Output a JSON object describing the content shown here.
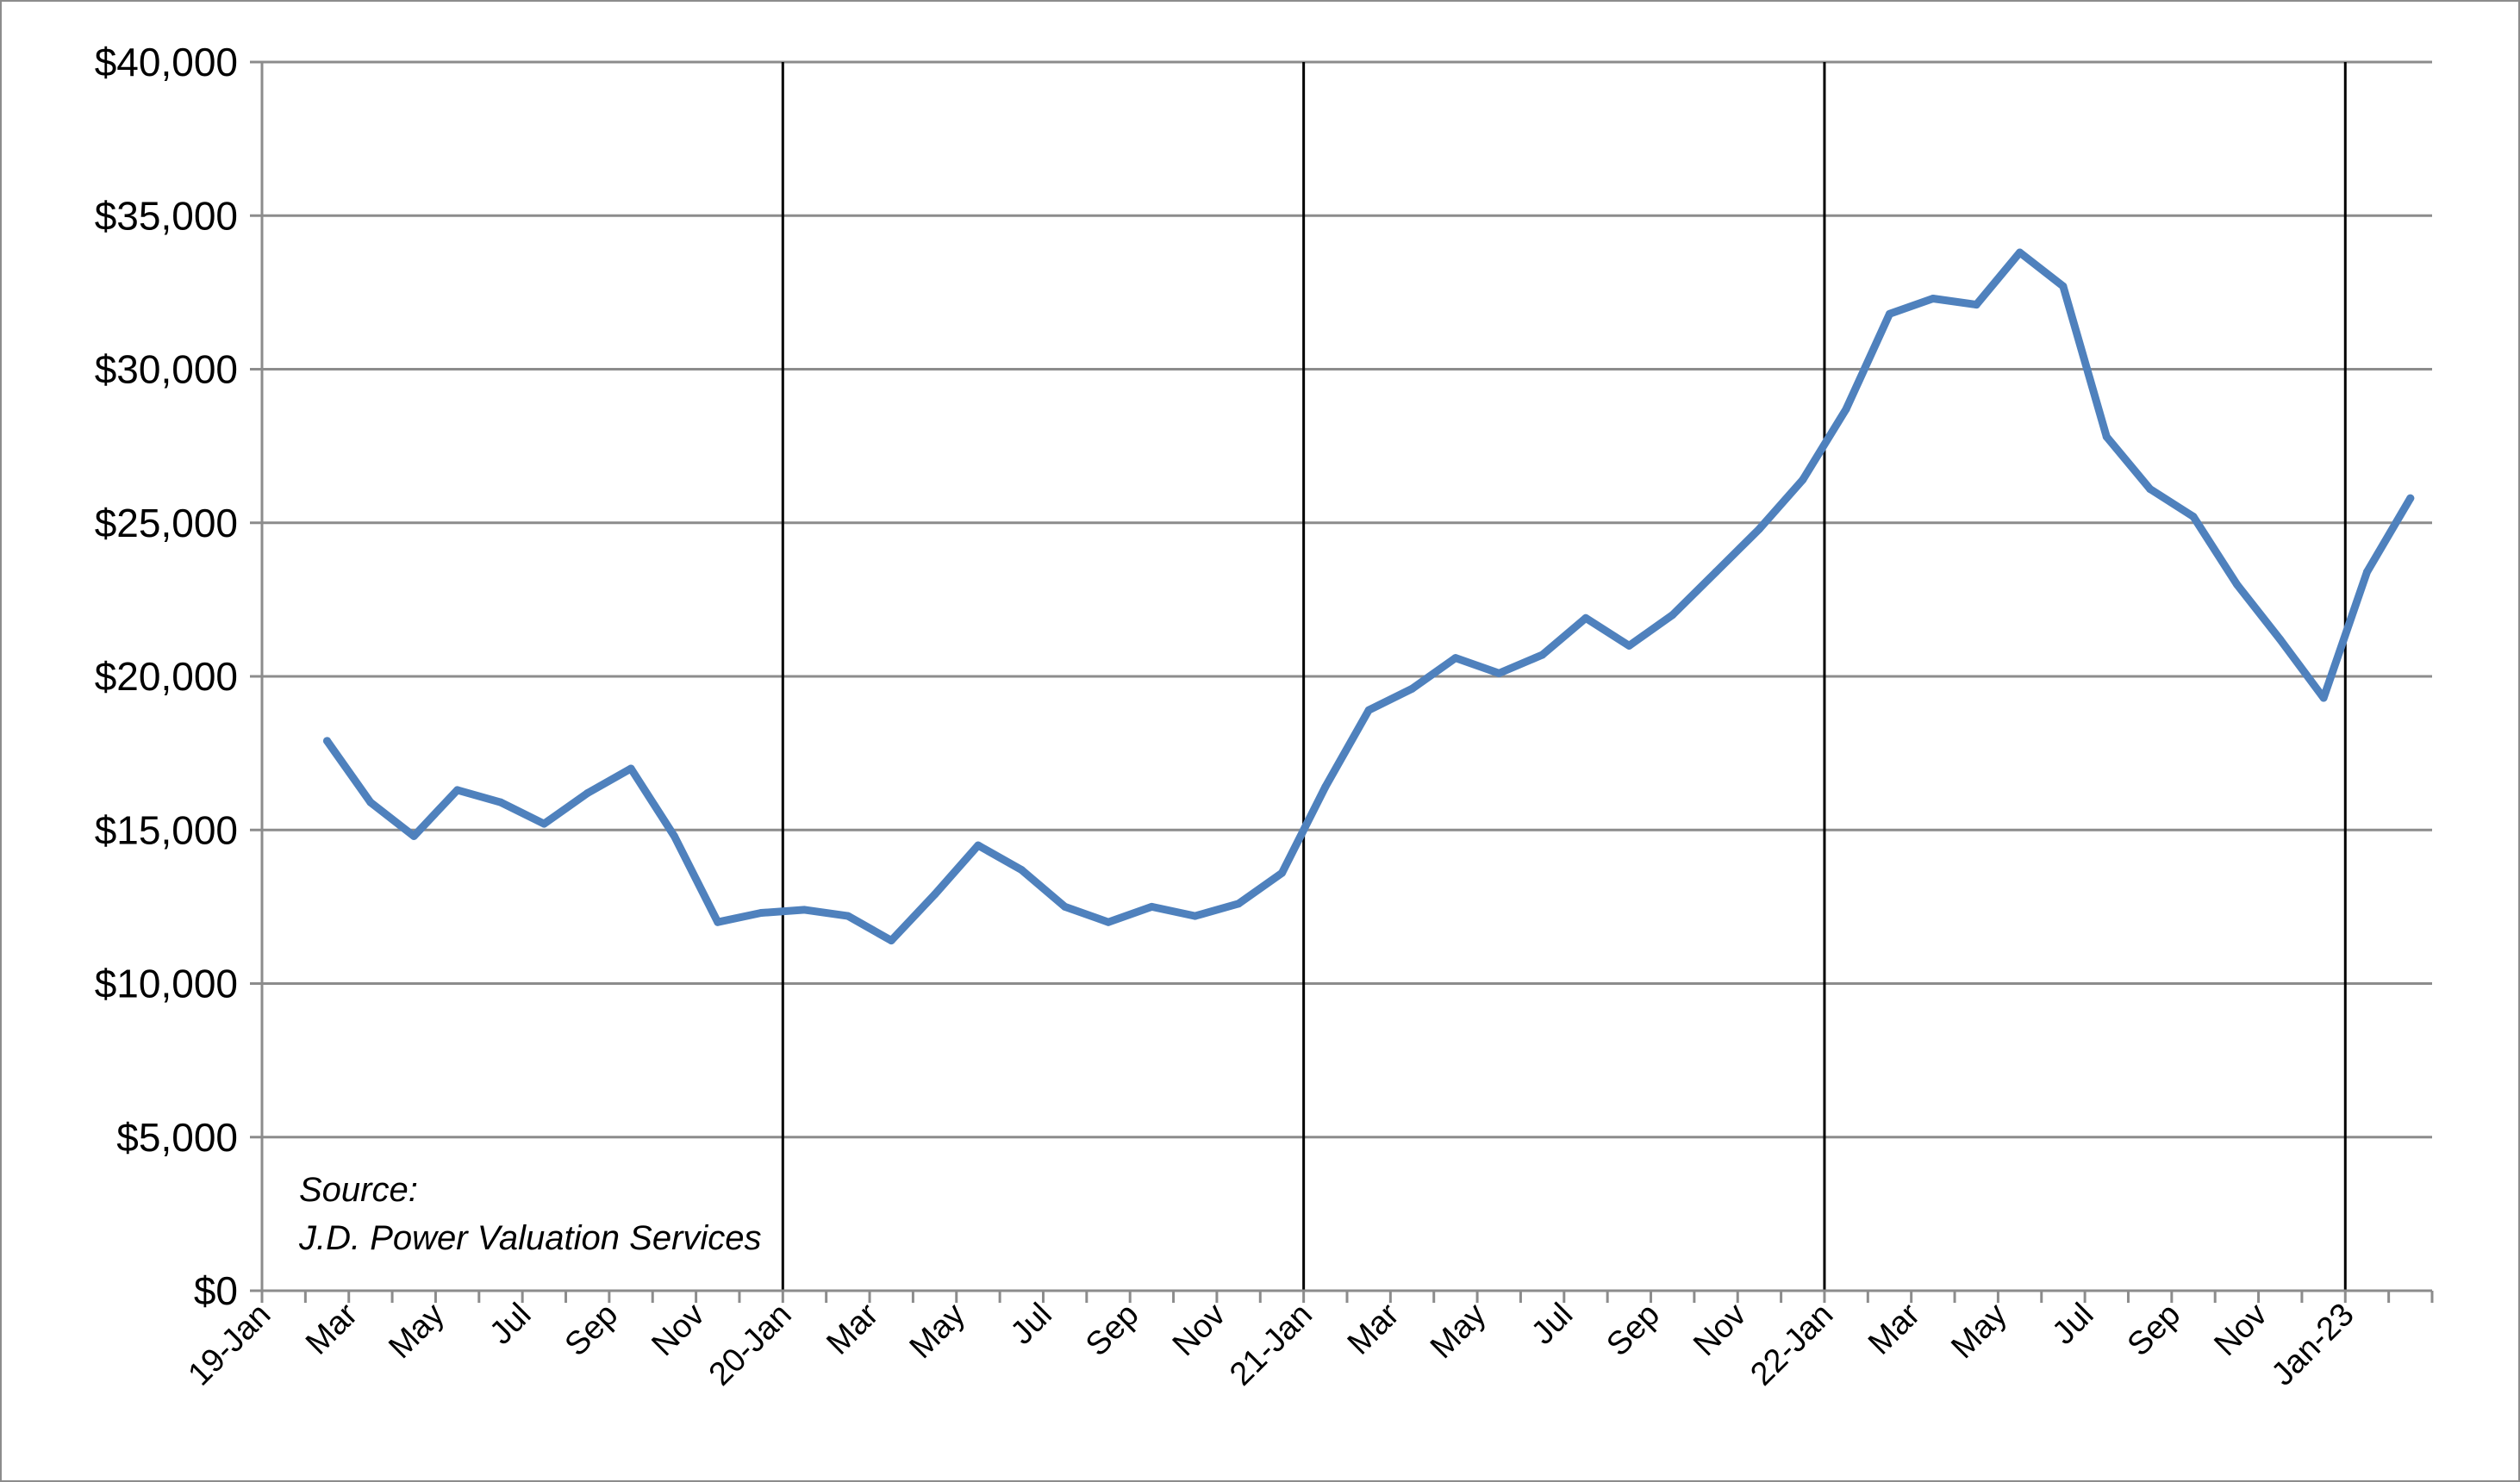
{
  "chart_data": {
    "type": "line",
    "title": "",
    "xlabel": "",
    "ylabel": "",
    "ylim": [
      0,
      40000
    ],
    "grid": true,
    "legend": "none",
    "line_color": "#4f81bd",
    "y_ticks": [
      "$0",
      "$5,000",
      "$10,000",
      "$15,000",
      "$20,000",
      "$25,000",
      "$30,000",
      "$35,000",
      "$40,000"
    ],
    "x_tick_labels": [
      "19-Jan",
      "Mar",
      "May",
      "Jul",
      "Sep",
      "Nov",
      "20-Jan",
      "Mar",
      "May",
      "Jul",
      "Sep",
      "Nov",
      "21-Jan",
      "Mar",
      "May",
      "Jul",
      "Sep",
      "Nov",
      "22-Jan",
      "Mar",
      "May",
      "Jul",
      "Sep",
      "Nov",
      "Jan-23"
    ],
    "year_separators": [
      "20-Jan",
      "21-Jan",
      "22-Jan",
      "Jan-23"
    ],
    "series": [
      {
        "values": [
          17900,
          15900,
          14800,
          16300,
          15900,
          15200,
          16200,
          17000,
          14800,
          12000,
          12300,
          12400,
          12200,
          11400,
          12900,
          14500,
          13700,
          12500,
          12000,
          12500,
          12200,
          12600,
          13600,
          16400,
          18900,
          19600,
          20600,
          20100,
          20700,
          21900,
          21000,
          22000,
          23400,
          24800,
          26400,
          28700,
          31800,
          32300,
          32100,
          33800,
          32700,
          27800,
          26100,
          25200,
          23000,
          21200,
          19300,
          23400,
          25800
        ]
      }
    ],
    "annotations": [
      "Source:",
      "J.D. Power Valuation Services"
    ]
  }
}
